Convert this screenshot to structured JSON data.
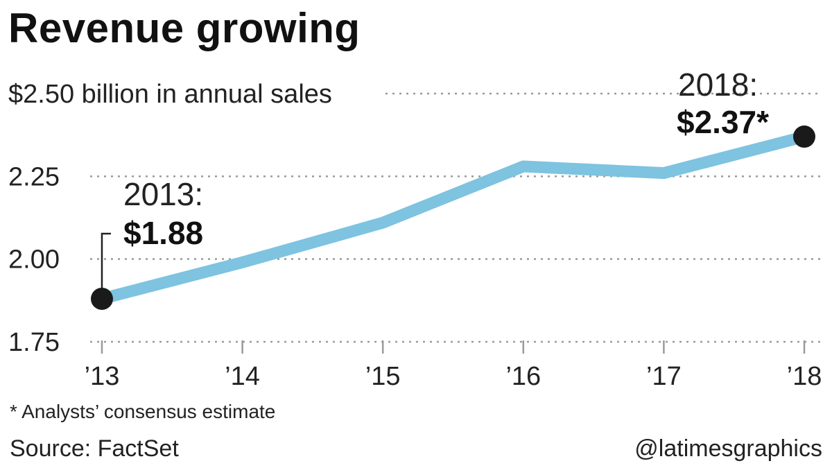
{
  "header": {
    "title": "Revenue growing"
  },
  "chart_data": {
    "type": "line",
    "title": "Revenue growing",
    "ylabel": "$2.50 billion in annual sales",
    "x": [
      "’13",
      "’14",
      "’15",
      "’16",
      "’17",
      "’18"
    ],
    "y_tick_labels": [
      "$2.50 billion in annual sales",
      "2.25",
      "2.00",
      "1.75"
    ],
    "ylim": [
      1.75,
      2.5
    ],
    "grid": true,
    "series": [
      {
        "values": [
          1.88,
          1.99,
          2.11,
          2.28,
          2.26,
          2.37
        ]
      }
    ],
    "annotations": [
      {
        "point_index": 0,
        "label": "2013:",
        "value": "$1.88"
      },
      {
        "point_index": 5,
        "label": "2018:",
        "value": "$2.37*"
      }
    ],
    "colors": {
      "line": "#7ec3e0",
      "marker": "#1a1a1a",
      "grid": "#9a9a9a"
    }
  },
  "footer": {
    "footnote": "* Analysts’ consensus estimate",
    "source": "Source: FactSet",
    "credit": "@latimesgraphics"
  }
}
